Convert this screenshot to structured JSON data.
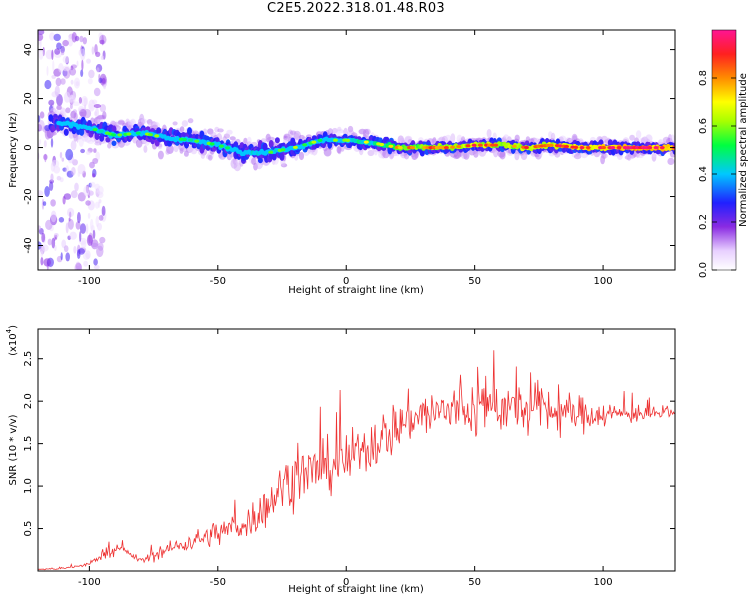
{
  "title": "C2E5.2022.318.01.48.R03",
  "chart_data": [
    {
      "type": "heatmap",
      "xlabel": "Height of straight line (km)",
      "ylabel": "Frequency (Hz)",
      "xlim": [
        -120,
        128
      ],
      "ylim": [
        -50,
        48
      ],
      "xticks": [
        -100,
        -50,
        0,
        50,
        100
      ],
      "yticks": [
        -40,
        -20,
        0,
        20,
        40
      ],
      "colorbar": {
        "label": "Normalized spectral amplitude",
        "range": [
          0.0,
          1.0
        ],
        "ticks": [
          "0.0",
          "0.2",
          "0.4",
          "0.6",
          "0.8"
        ],
        "colormap": "rainbow (white-purple-blue-cyan-green-yellow-orange-red-magenta)"
      },
      "ridge": {
        "description": "frequency of peak spectral amplitude vs height",
        "x": [
          -110,
          -100,
          -90,
          -80,
          -70,
          -60,
          -50,
          -40,
          -30,
          -20,
          -10,
          0,
          10,
          20,
          30,
          40,
          50,
          60,
          70,
          80,
          90,
          100,
          110,
          120,
          128
        ],
        "y": [
          10,
          8,
          5,
          6,
          4,
          3,
          1,
          -2,
          -2,
          0,
          3,
          3,
          2,
          0,
          0,
          0,
          1,
          1,
          0,
          1,
          0,
          0,
          0,
          0,
          0
        ],
        "amplitude": [
          0.35,
          0.4,
          0.45,
          0.5,
          0.45,
          0.45,
          0.5,
          0.5,
          0.55,
          0.5,
          0.5,
          0.55,
          0.6,
          0.7,
          0.75,
          0.75,
          0.8,
          0.75,
          0.8,
          0.8,
          0.85,
          0.85,
          0.9,
          0.9,
          0.9
        ]
      },
      "noise_region_x": [
        -120,
        -100
      ]
    },
    {
      "type": "line",
      "xlabel": "Height of straight line (km)",
      "ylabel": "SNR (10 * v/v)",
      "y_scale_note": "(x10",
      "y_scale_exp": "4",
      "xlim": [
        -120,
        128
      ],
      "ylim": [
        0,
        2.85
      ],
      "xticks": [
        -100,
        -50,
        0,
        50,
        100
      ],
      "yticks": [
        "0.5",
        "1.0",
        "1.5",
        "2.0",
        "2.5"
      ],
      "color": "#ee3333",
      "series": [
        {
          "x": [
            -120,
            -110,
            -100,
            -95,
            -90,
            -85,
            -80,
            -75,
            -70,
            -65,
            -60,
            -55,
            -50,
            -45,
            -40,
            -35,
            -30,
            -25,
            -20,
            -15,
            -10,
            -5,
            0,
            5,
            10,
            15,
            20,
            25,
            30,
            35,
            40,
            45,
            50,
            55,
            60,
            65,
            70,
            75,
            80,
            85,
            90,
            95,
            100,
            105,
            110,
            115,
            120,
            128
          ],
          "y": [
            0.02,
            0.03,
            0.08,
            0.2,
            0.25,
            0.22,
            0.12,
            0.18,
            0.25,
            0.3,
            0.35,
            0.4,
            0.45,
            0.5,
            0.55,
            0.65,
            0.8,
            1.0,
            1.1,
            1.15,
            1.2,
            1.25,
            1.3,
            1.4,
            1.5,
            1.6,
            1.7,
            1.8,
            1.85,
            1.85,
            1.9,
            1.9,
            1.9,
            1.95,
            1.95,
            1.9,
            1.9,
            1.9,
            1.9,
            1.85,
            1.85,
            1.85,
            1.85,
            1.85,
            1.85,
            1.85,
            1.85,
            1.85
          ],
          "spread": [
            0.01,
            0.02,
            0.03,
            0.1,
            0.1,
            0.07,
            0.05,
            0.1,
            0.12,
            0.15,
            0.17,
            0.2,
            0.25,
            0.25,
            0.3,
            0.35,
            0.4,
            0.45,
            0.5,
            0.5,
            0.5,
            0.5,
            0.5,
            0.5,
            0.5,
            0.5,
            0.5,
            0.45,
            0.45,
            0.5,
            0.5,
            0.5,
            0.55,
            0.55,
            0.5,
            0.5,
            0.45,
            0.45,
            0.45,
            0.4,
            0.35,
            0.3,
            0.25,
            0.2,
            0.18,
            0.15,
            0.12,
            0.1
          ]
        }
      ]
    }
  ]
}
